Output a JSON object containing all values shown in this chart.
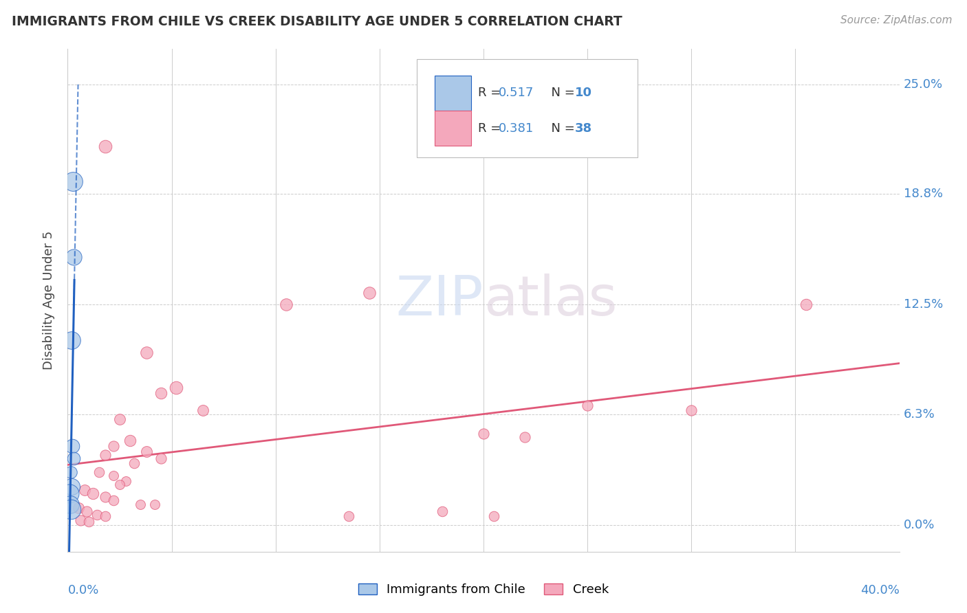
{
  "title": "IMMIGRANTS FROM CHILE VS CREEK DISABILITY AGE UNDER 5 CORRELATION CHART",
  "source": "Source: ZipAtlas.com",
  "ylabel": "Disability Age Under 5",
  "ytick_labels": [
    "0.0%",
    "6.3%",
    "12.5%",
    "18.8%",
    "25.0%"
  ],
  "ytick_values": [
    0.0,
    6.3,
    12.5,
    18.8,
    25.0
  ],
  "xlim": [
    0.0,
    40.0
  ],
  "ylim": [
    -1.5,
    27.0
  ],
  "color_chile": "#aac8e8",
  "color_creek": "#f4a8bc",
  "trendline_chile_color": "#2060c0",
  "trendline_creek_color": "#e05878",
  "watermark": "ZIPatlas",
  "legend_r1": "R = 0.517",
  "legend_n1": "N = 10",
  "legend_r2": "R = 0.381",
  "legend_n2": "N = 38",
  "chile_points": [
    [
      0.25,
      19.5,
      400
    ],
    [
      0.3,
      15.2,
      280
    ],
    [
      0.18,
      10.5,
      340
    ],
    [
      0.22,
      4.5,
      220
    ],
    [
      0.28,
      3.8,
      180
    ],
    [
      0.15,
      3.0,
      160
    ],
    [
      0.2,
      2.2,
      300
    ],
    [
      0.1,
      1.8,
      380
    ],
    [
      0.12,
      1.2,
      340
    ],
    [
      0.16,
      0.9,
      420
    ]
  ],
  "creek_points": [
    [
      1.8,
      21.5,
      180
    ],
    [
      10.5,
      12.5,
      160
    ],
    [
      14.5,
      13.2,
      160
    ],
    [
      3.8,
      9.8,
      160
    ],
    [
      5.2,
      7.8,
      180
    ],
    [
      4.5,
      7.5,
      140
    ],
    [
      6.5,
      6.5,
      130
    ],
    [
      2.5,
      6.0,
      130
    ],
    [
      3.0,
      4.8,
      140
    ],
    [
      2.2,
      4.5,
      120
    ],
    [
      3.8,
      4.2,
      130
    ],
    [
      1.8,
      4.0,
      120
    ],
    [
      4.5,
      3.8,
      120
    ],
    [
      3.2,
      3.5,
      110
    ],
    [
      1.5,
      3.0,
      110
    ],
    [
      2.2,
      2.8,
      100
    ],
    [
      2.8,
      2.5,
      100
    ],
    [
      2.5,
      2.3,
      100
    ],
    [
      0.8,
      2.0,
      130
    ],
    [
      1.2,
      1.8,
      140
    ],
    [
      1.8,
      1.6,
      120
    ],
    [
      2.2,
      1.4,
      110
    ],
    [
      3.5,
      1.2,
      100
    ],
    [
      4.2,
      1.2,
      100
    ],
    [
      0.5,
      1.0,
      130
    ],
    [
      0.9,
      0.8,
      120
    ],
    [
      1.4,
      0.6,
      110
    ],
    [
      1.8,
      0.5,
      110
    ],
    [
      0.6,
      0.3,
      120
    ],
    [
      1.0,
      0.2,
      110
    ],
    [
      20.0,
      5.2,
      120
    ],
    [
      25.0,
      6.8,
      120
    ],
    [
      30.0,
      6.5,
      120
    ],
    [
      35.5,
      12.5,
      140
    ],
    [
      22.0,
      5.0,
      120
    ],
    [
      18.0,
      0.8,
      110
    ],
    [
      20.5,
      0.5,
      110
    ],
    [
      13.5,
      0.5,
      110
    ]
  ]
}
